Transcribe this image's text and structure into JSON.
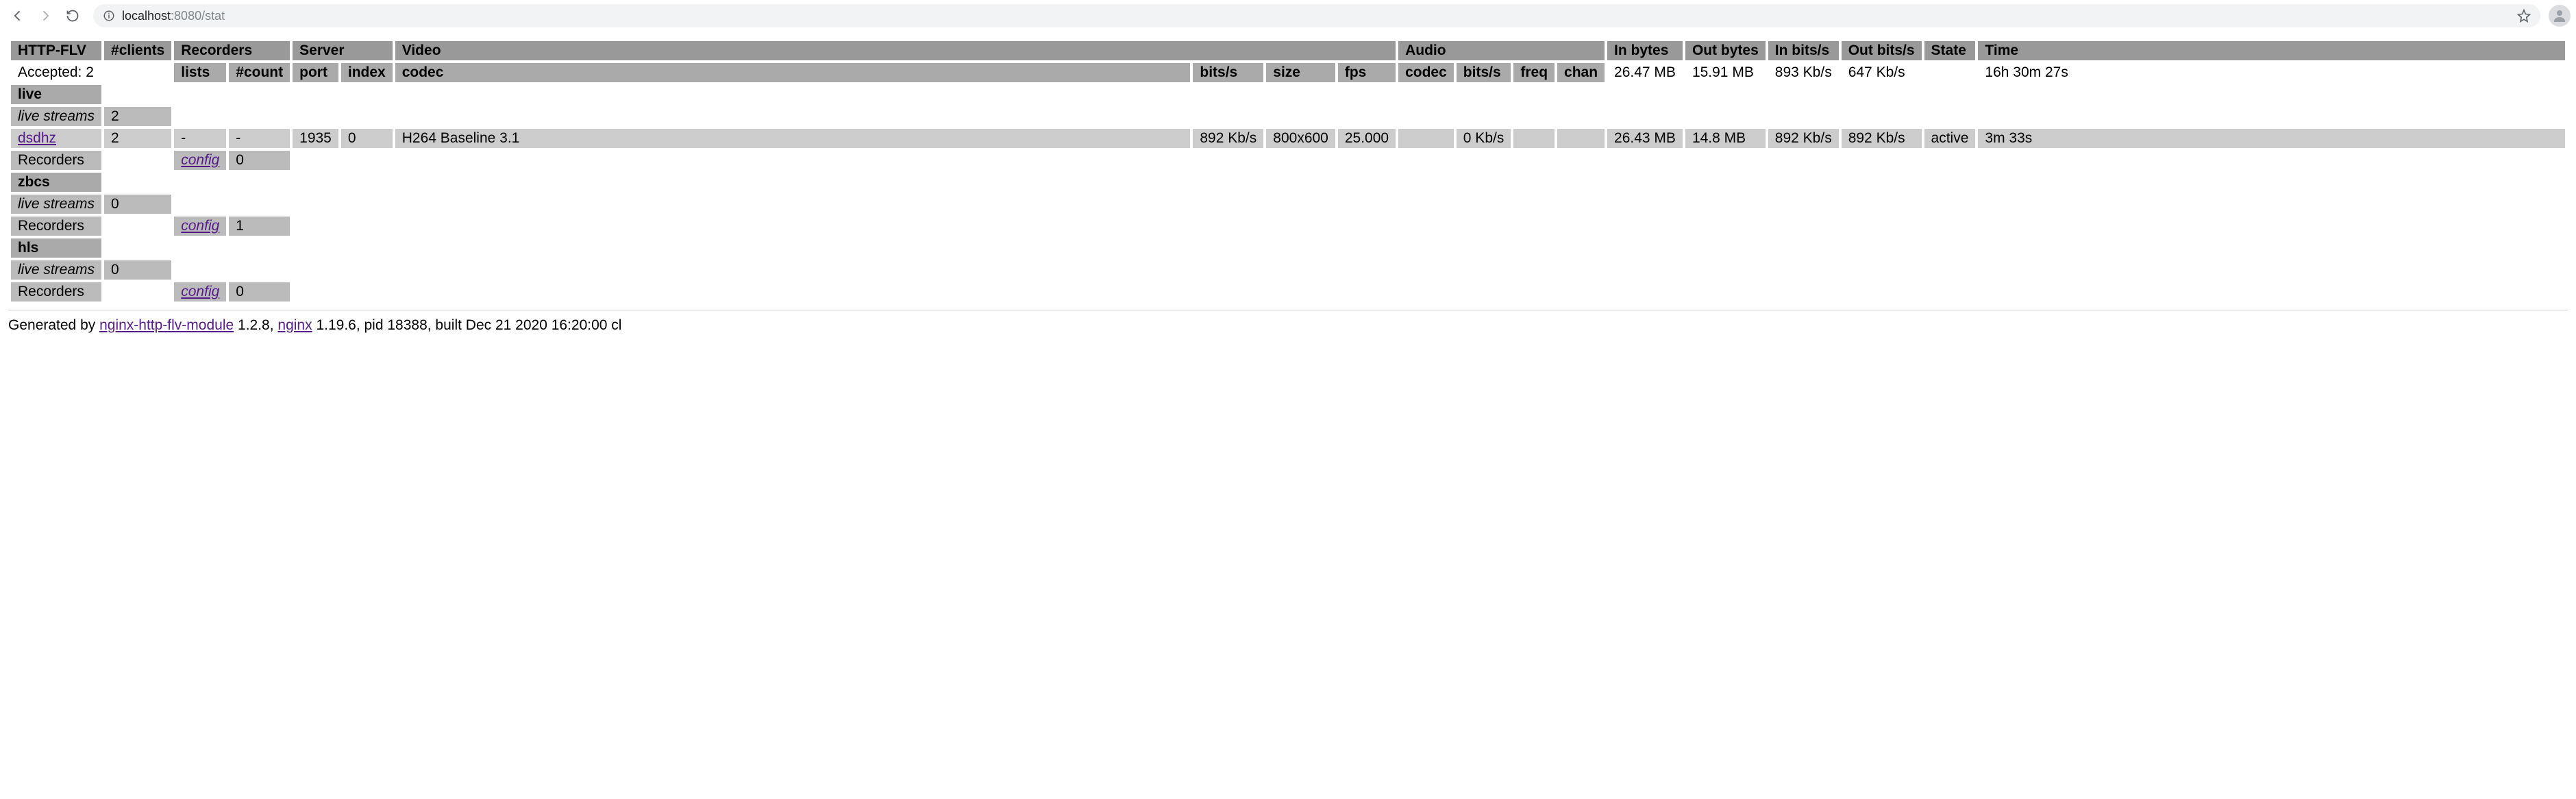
{
  "browser": {
    "url_host": "localhost",
    "url_port_path": ":8080/stat"
  },
  "colors": {
    "header_bg": "#999999",
    "subheader_bg": "#aaaaaa",
    "section_bg": "#aaaaaa",
    "dim_bg": "#bbbbbb",
    "row_bg": "#cccccc",
    "link_color": "#551a8b"
  },
  "headers": {
    "http_flv": "HTTP-FLV",
    "clients": "#clients",
    "recorders": "Recorders",
    "server": "Server",
    "video": "Video",
    "audio": "Audio",
    "in_bytes": "In bytes",
    "out_bytes": "Out bytes",
    "in_bits": "In bits/s",
    "out_bits": "Out bits/s",
    "state": "State",
    "time": "Time"
  },
  "subheaders": {
    "lists": "lists",
    "count": "#count",
    "port": "port",
    "index": "index",
    "v_codec": "codec",
    "v_bits": "bits/s",
    "v_size": "size",
    "v_fps": "fps",
    "a_codec": "codec",
    "a_bits": "bits/s",
    "a_freq": "freq",
    "a_chan": "chan"
  },
  "summary": {
    "accepted": "Accepted: 2",
    "in_bytes": "26.47 MB",
    "out_bytes": "15.91 MB",
    "in_bits": "893 Kb/s",
    "out_bits": "647 Kb/s",
    "time": "16h 30m 27s"
  },
  "labels": {
    "live_streams": "live streams",
    "recorders": "Recorders",
    "config": "config"
  },
  "apps": [
    {
      "name": "live",
      "live_count": "2",
      "streams": [
        {
          "name": "dsdhz",
          "clients": "2",
          "rec_lists": "-",
          "rec_count": "-",
          "port": "1935",
          "index": "0",
          "v_codec": "H264 Baseline 3.1",
          "v_bits": "892 Kb/s",
          "v_size": "800x600",
          "v_fps": "25.000",
          "a_codec": "",
          "a_bits": "0 Kb/s",
          "a_freq": "",
          "a_chan": "",
          "in_bytes": "26.43 MB",
          "out_bytes": "14.8 MB",
          "in_bits": "892 Kb/s",
          "out_bits": "892 Kb/s",
          "state": "active",
          "time": "3m 33s"
        }
      ],
      "rec_count": "0"
    },
    {
      "name": "zbcs",
      "live_count": "0",
      "streams": [],
      "rec_count": "1"
    },
    {
      "name": "hls",
      "live_count": "0",
      "streams": [],
      "rec_count": "0"
    }
  ],
  "footer": {
    "prefix": "Generated by ",
    "module_link": "nginx-http-flv-module",
    "module_ver": " 1.2.8, ",
    "nginx_link": "nginx",
    "tail": " 1.19.6, pid 18388, built Dec 21 2020 16:20:00 cl"
  }
}
